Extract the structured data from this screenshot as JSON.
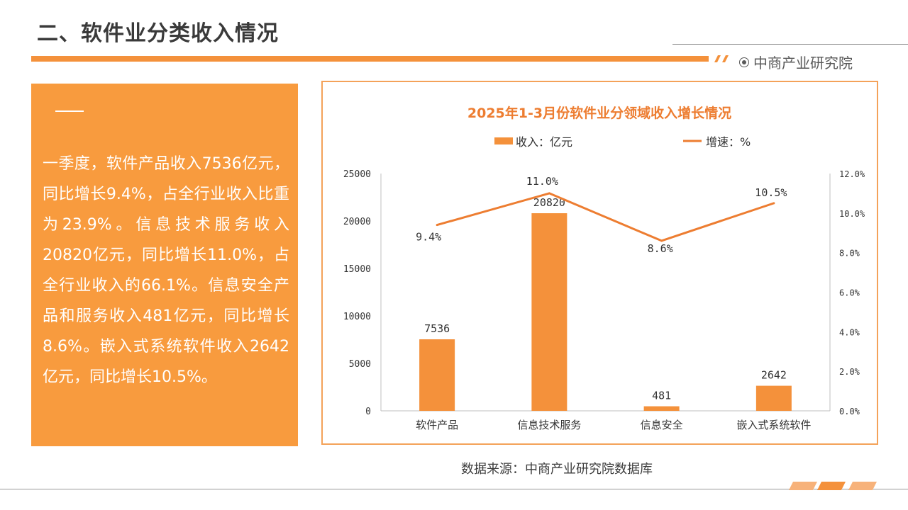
{
  "header": {
    "title": "二、软件业分类收入情况",
    "brand": "中商产业研究院"
  },
  "summary": {
    "text": "一季度，软件产品收入7536亿元，同比增长9.4%，占全行业收入比重为23.9%。信息技术服务收入20820亿元，同比增长11.0%，占全行业收入的66.1%。信息安全产品和服务收入481亿元，同比增长8.6%。嵌入式系统软件收入2642亿元，同比增长10.5%。"
  },
  "chart_data": {
    "type": "bar",
    "title": "2025年1-3月份软件业分领域收入增长情况",
    "categories": [
      "软件产品",
      "信息技术服务",
      "信息安全",
      "嵌入式系统软件"
    ],
    "series": [
      {
        "name": "收入：亿元",
        "type": "bar",
        "values": [
          7536,
          20820,
          481,
          2642
        ],
        "axis": "left"
      },
      {
        "name": "增速：%",
        "type": "line",
        "values": [
          9.4,
          11.0,
          8.6,
          10.5
        ],
        "axis": "right"
      }
    ],
    "data_labels_bar": [
      "7536",
      "20820",
      "481",
      "2642"
    ],
    "data_labels_line": [
      "9.4%",
      "11.0%",
      "8.6%",
      "10.5%"
    ],
    "y_left": {
      "range": [
        0,
        25000
      ],
      "ticks": [
        "0",
        "5000",
        "10000",
        "15000",
        "20000",
        "25000"
      ]
    },
    "y_right": {
      "range": [
        0,
        12
      ],
      "ticks": [
        "0.0%",
        "2.0%",
        "4.0%",
        "6.0%",
        "8.0%",
        "10.0%",
        "12.0%"
      ]
    },
    "legend_position": "top",
    "grid": false,
    "colors": {
      "bar": "#f4913b",
      "line": "#ed7d31",
      "title": "#ed7d31"
    }
  },
  "footer": {
    "source": "数据来源：中商产业研究院数据库"
  },
  "colors": {
    "accent": "#f4913b",
    "summary_bg": "#f89b3e"
  }
}
